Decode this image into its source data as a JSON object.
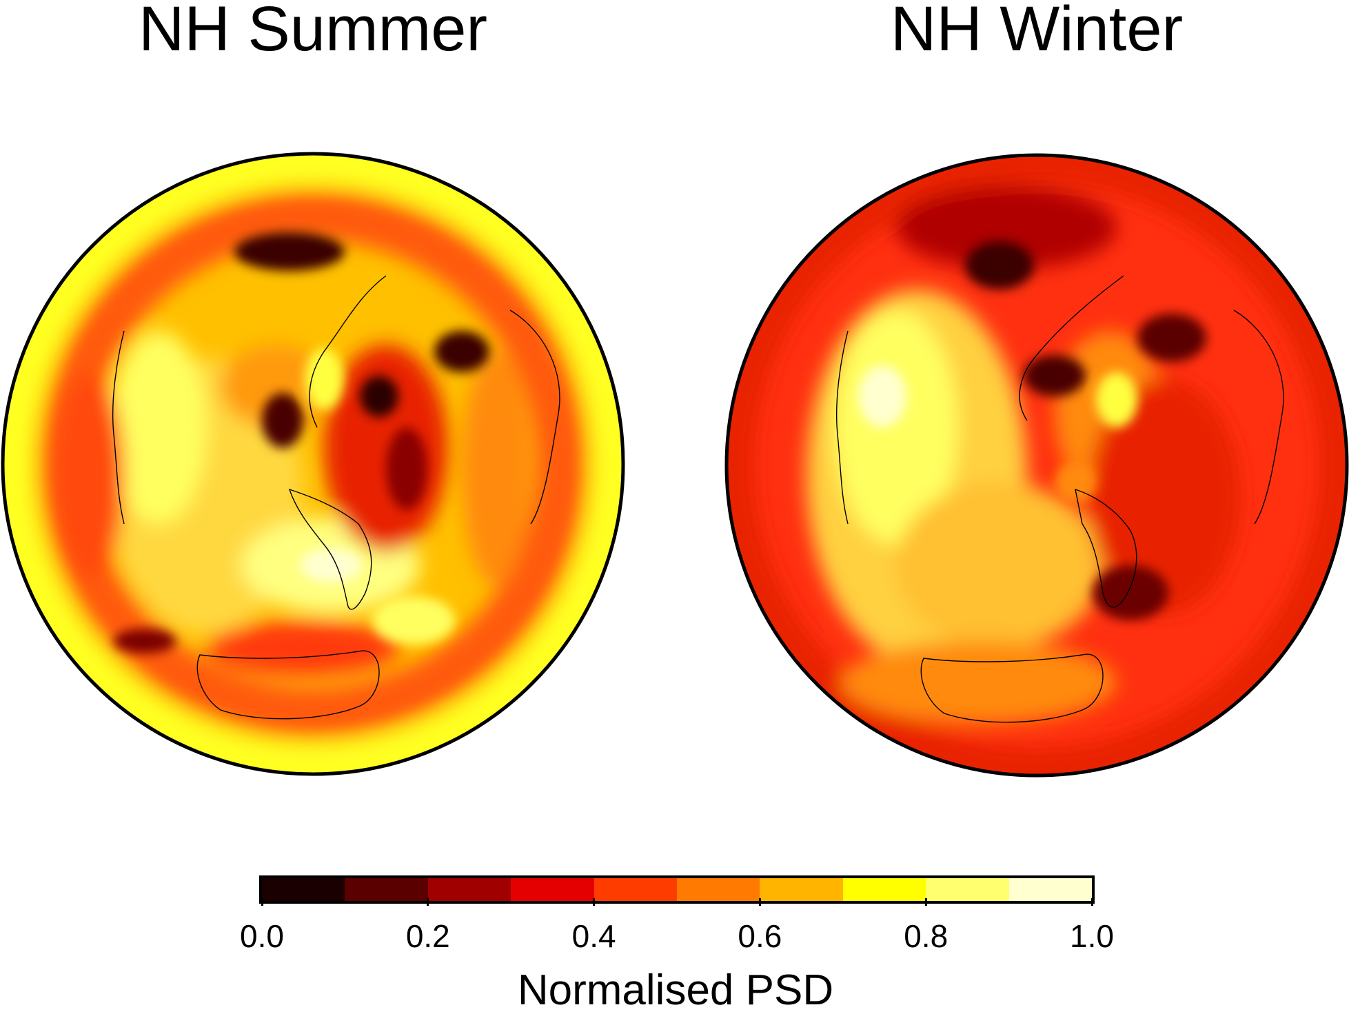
{
  "panels": [
    {
      "title": "NH Summer",
      "base_color": "#ffc000",
      "blobs": [
        {
          "c": "#ff4010",
          "r": 0.92,
          "rr": 0.1,
          "s": 0.22
        },
        {
          "c": "#ff4010",
          "r": 0.7,
          "rr": 0.12,
          "s": 0.16
        },
        {
          "c": "#ffff40",
          "r": 0.55,
          "rr": 0.2,
          "s": 0.08
        }
      ]
    },
    {
      "title": "NH Winter",
      "base_color": "#ff3010",
      "blobs": []
    }
  ],
  "colorbar": {
    "title": "Normalised PSD",
    "colors": [
      "#1a0000",
      "#5a0000",
      "#a00000",
      "#e40000",
      "#ff3c00",
      "#ff7a00",
      "#ffb400",
      "#ffff00",
      "#ffff70",
      "#ffffd0"
    ],
    "ticks": [
      "0.0",
      "0.2",
      "0.4",
      "0.6",
      "0.8",
      "1.0"
    ]
  }
}
